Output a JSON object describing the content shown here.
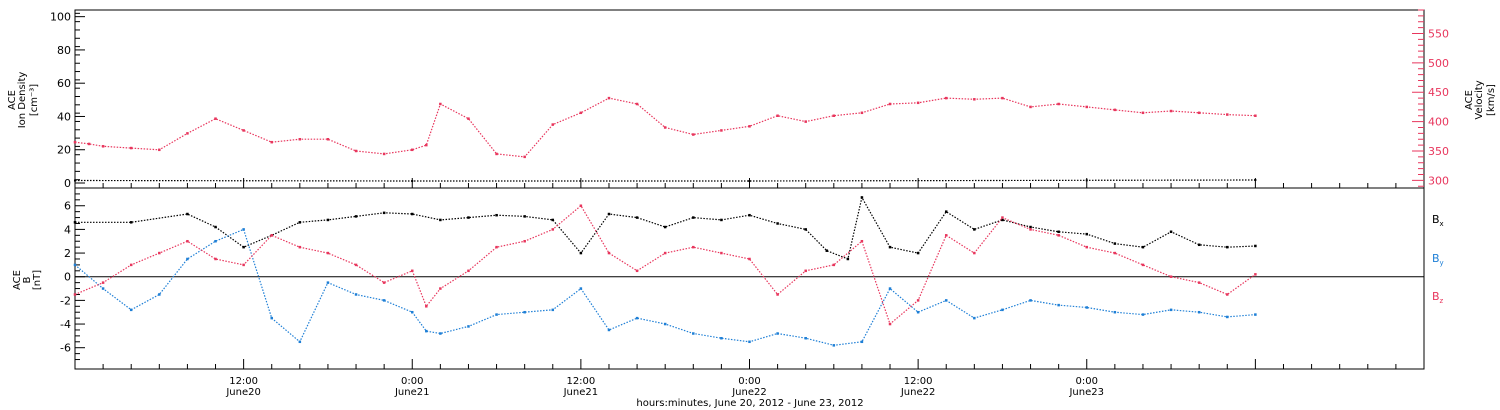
{
  "colors": {
    "density": "#000000",
    "velocity": "#e8365d",
    "bx": "#000000",
    "by": "#1e7fd6",
    "bz": "#e8365d",
    "axis": "#000000"
  },
  "chart_data": [
    {
      "type": "scatter",
      "panel": "top",
      "ylabel_left_lines": [
        "ACE",
        "Ion Density"
      ],
      "ylabel_left_unit": "[cm⁻³]",
      "ylabel_right_lines": [
        "ACE",
        "Velocity"
      ],
      "ylabel_right_unit": "[km/s]",
      "ylim_left": [
        -3,
        104
      ],
      "ylim_right": [
        287,
        590
      ],
      "yticks_left": [
        0,
        20,
        40,
        60,
        80,
        100
      ],
      "yticks_right": [
        300,
        350,
        400,
        450,
        500,
        550
      ],
      "series": [
        {
          "key": "density",
          "axis": "left",
          "x": [
            0,
            24,
            48,
            72,
            84
          ],
          "y": [
            1.5,
            1.2,
            1.2,
            1.6,
            1.8
          ]
        },
        {
          "key": "velocity",
          "axis": "right",
          "x": [
            0,
            1,
            2,
            4,
            6,
            8,
            10,
            12,
            14,
            16,
            18,
            20,
            22,
            24,
            25,
            26,
            28,
            30,
            32,
            34,
            36,
            38,
            40,
            42,
            44,
            46,
            48,
            50,
            52,
            54,
            56,
            58,
            60,
            62,
            64,
            66,
            68,
            70,
            72,
            74,
            76,
            78,
            80,
            82,
            84
          ],
          "y": [
            365,
            362,
            358,
            355,
            352,
            380,
            405,
            385,
            365,
            370,
            370,
            350,
            345,
            352,
            360,
            430,
            405,
            345,
            340,
            395,
            415,
            440,
            430,
            390,
            378,
            385,
            392,
            410,
            400,
            410,
            415,
            430,
            432,
            440,
            438,
            440,
            425,
            430,
            425,
            420,
            415,
            418,
            415,
            412,
            410
          ]
        }
      ]
    },
    {
      "type": "scatter",
      "panel": "bottom",
      "ylabel_lines": [
        "ACE",
        "B"
      ],
      "ylabel_unit": "[nT]",
      "ylim": [
        -7.8,
        7.5
      ],
      "yticks": [
        -6,
        -4,
        -2,
        0,
        2,
        4,
        6
      ],
      "x_ticks": [
        {
          "x": 12,
          "time": "12:00",
          "date": "June20"
        },
        {
          "x": 24,
          "time": "0:00",
          "date": "June21"
        },
        {
          "x": 36,
          "time": "12:00",
          "date": "June21"
        },
        {
          "x": 48,
          "time": "0:00",
          "date": "June22"
        },
        {
          "x": 60,
          "time": "12:00",
          "date": "June22"
        },
        {
          "x": 72,
          "time": "0:00",
          "date": "June23"
        }
      ],
      "xlim": [
        0,
        96
      ],
      "xlabel": "hours:minutes, June 20, 2012 - June 23, 2012",
      "series": [
        {
          "key": "bx",
          "name": "Bx",
          "x": [
            0,
            4,
            8,
            10,
            12,
            14,
            16,
            18,
            20,
            22,
            24,
            26,
            28,
            30,
            32,
            34,
            36,
            38,
            40,
            42,
            44,
            46,
            48,
            50,
            52,
            53.5,
            55,
            56,
            58,
            60,
            62,
            64,
            66,
            68,
            70,
            72,
            74,
            76,
            78,
            80,
            82,
            84
          ],
          "y": [
            4.6,
            4.6,
            5.3,
            4.2,
            2.5,
            3.5,
            4.6,
            4.8,
            5.1,
            5.4,
            5.3,
            4.8,
            5.0,
            5.2,
            5.1,
            4.8,
            2.0,
            5.3,
            5.0,
            4.2,
            5.0,
            4.8,
            5.2,
            4.5,
            4.0,
            2.2,
            1.5,
            6.7,
            2.5,
            2.0,
            5.5,
            4.0,
            4.8,
            4.2,
            3.8,
            3.6,
            2.8,
            2.5,
            3.8,
            2.7,
            2.5,
            2.6
          ]
        },
        {
          "key": "by",
          "name": "By",
          "x": [
            0,
            2,
            4,
            6,
            8,
            10,
            12,
            14,
            16,
            18,
            20,
            22,
            24,
            25,
            26,
            28,
            30,
            32,
            34,
            36,
            38,
            40,
            42,
            44,
            46,
            48,
            50,
            52,
            54,
            56,
            58,
            60,
            62,
            64,
            66,
            68,
            70,
            72,
            74,
            76,
            78,
            80,
            82,
            84
          ],
          "y": [
            1.0,
            -1.0,
            -2.8,
            -1.5,
            1.5,
            3.0,
            4.0,
            -3.5,
            -5.5,
            -0.5,
            -1.5,
            -2.0,
            -3.0,
            -4.6,
            -4.8,
            -4.2,
            -3.2,
            -3.0,
            -2.8,
            -1.0,
            -4.5,
            -3.5,
            -4.0,
            -4.8,
            -5.2,
            -5.5,
            -4.8,
            -5.2,
            -5.8,
            -5.5,
            -1.0,
            -3.0,
            -2.0,
            -3.5,
            -2.8,
            -2.0,
            -2.4,
            -2.6,
            -3.0,
            -3.2,
            -2.8,
            -3.0,
            -3.4,
            -3.2
          ]
        },
        {
          "key": "bz",
          "name": "Bz",
          "x": [
            0,
            2,
            4,
            6,
            8,
            10,
            12,
            14,
            16,
            18,
            20,
            22,
            24,
            25,
            26,
            28,
            30,
            32,
            34,
            36,
            38,
            40,
            42,
            44,
            46,
            48,
            50,
            52,
            54,
            56,
            58,
            60,
            62,
            64,
            66,
            68,
            70,
            72,
            74,
            76,
            78,
            80,
            82,
            84
          ],
          "y": [
            -1.5,
            -0.5,
            1.0,
            2.0,
            3.0,
            1.5,
            1.0,
            3.5,
            2.5,
            2.0,
            1.0,
            -0.5,
            0.5,
            -2.5,
            -1.0,
            0.5,
            2.5,
            3.0,
            4.0,
            6.0,
            2.0,
            0.5,
            2.0,
            2.5,
            2.0,
            1.5,
            -1.5,
            0.5,
            1.0,
            3.0,
            -4.0,
            -2.0,
            3.5,
            2.0,
            5.0,
            4.0,
            3.5,
            2.5,
            2.0,
            1.0,
            0.0,
            -0.5,
            -1.5,
            0.2
          ]
        }
      ],
      "legend": [
        {
          "key": "bx",
          "base": "B",
          "sub": "x"
        },
        {
          "key": "by",
          "base": "B",
          "sub": "y"
        },
        {
          "key": "bz",
          "base": "B",
          "sub": "z"
        }
      ]
    }
  ]
}
